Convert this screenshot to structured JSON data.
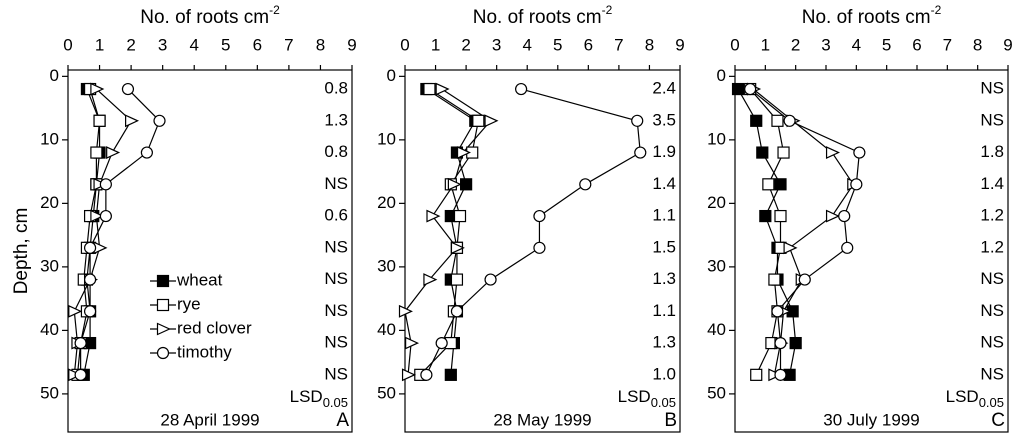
{
  "chart_data": [
    {
      "type": "line",
      "x_label": "No. of roots cm",
      "x_label_sup": "-2",
      "y_label": "Depth, cm",
      "xlim": [
        0,
        9
      ],
      "xticks": [
        0,
        1,
        2,
        3,
        4,
        5,
        6,
        7,
        8,
        9
      ],
      "ylim": [
        -1,
        56
      ],
      "yticks": [
        0,
        10,
        20,
        30,
        40,
        50
      ],
      "y_inverted": true,
      "y": [
        2,
        7,
        12,
        17,
        22,
        27,
        32,
        37,
        42,
        47
      ],
      "legend": "center-left",
      "series": [
        {
          "name": "wheat",
          "color": "#000000",
          "marker": "filled-square",
          "values": [
            0.6,
            1.0,
            1.0,
            0.9,
            0.8,
            0.7,
            0.6,
            0.7,
            0.7,
            0.5
          ]
        },
        {
          "name": "rye",
          "color": "#000000",
          "marker": "open-square",
          "values": [
            0.7,
            1.0,
            0.9,
            0.9,
            0.7,
            0.6,
            0.5,
            0.6,
            0.4,
            0.3
          ]
        },
        {
          "name": "red clover",
          "color": "#000000",
          "marker": "triangle-right",
          "values": [
            0.9,
            2.0,
            1.4,
            1.0,
            0.9,
            1.0,
            0.7,
            0.2,
            0.3,
            0.2
          ]
        },
        {
          "name": "timothy",
          "color": "#000000",
          "marker": "circle",
          "values": [
            1.9,
            2.9,
            2.5,
            1.2,
            1.2,
            0.7,
            0.7,
            0.7,
            0.4,
            0.4
          ]
        }
      ],
      "annotations": [
        "0.8",
        "1.3",
        "0.8",
        "NS",
        "0.6",
        "NS",
        "NS",
        "NS",
        "NS",
        "NS"
      ],
      "lsd_label": "LSD",
      "lsd_sub": "0.05",
      "date": "28 April 1999",
      "panel": "A"
    },
    {
      "type": "line",
      "x_label": "No. of roots cm",
      "x_label_sup": "-2",
      "xlim": [
        0,
        9
      ],
      "xticks": [
        0,
        1,
        2,
        3,
        4,
        5,
        6,
        7,
        8,
        9
      ],
      "ylim": [
        -1,
        56
      ],
      "yticks": [
        0,
        10,
        20,
        30,
        40,
        50
      ],
      "y_inverted": true,
      "y": [
        2,
        7,
        12,
        17,
        22,
        27,
        32,
        37,
        42,
        47
      ],
      "series": [
        {
          "color": "#000000",
          "marker": "filled-square",
          "values": [
            0.7,
            2.3,
            1.7,
            2.0,
            1.5,
            1.7,
            1.5,
            1.7,
            1.6,
            1.5
          ]
        },
        {
          "color": "#000000",
          "marker": "open-square",
          "values": [
            0.8,
            2.4,
            2.2,
            1.5,
            1.8,
            1.7,
            1.7,
            1.6,
            1.5,
            0.5
          ]
        },
        {
          "color": "#000000",
          "marker": "triangle-right",
          "values": [
            1.2,
            2.8,
            1.9,
            1.6,
            0.9,
            1.7,
            0.8,
            0.0,
            0.2,
            0.1
          ]
        },
        {
          "color": "#000000",
          "marker": "circle",
          "values": [
            3.8,
            7.6,
            7.7,
            5.9,
            4.4,
            4.4,
            2.8,
            1.7,
            1.2,
            0.7
          ]
        }
      ],
      "annotations": [
        "2.4",
        "3.5",
        "1.9",
        "1.4",
        "1.1",
        "1.5",
        "1.3",
        "1.1",
        "1.3",
        "1.0"
      ],
      "lsd_label": "LSD",
      "lsd_sub": "0.05",
      "date": "28 May 1999",
      "panel": "B"
    },
    {
      "type": "line",
      "x_label": "No. of roots cm",
      "x_label_sup": "-2",
      "xlim": [
        0,
        9
      ],
      "xticks": [
        0,
        1,
        2,
        3,
        4,
        5,
        6,
        7,
        8,
        9
      ],
      "ylim": [
        -1,
        56
      ],
      "yticks": [
        0,
        10,
        20,
        30,
        40,
        50
      ],
      "y_inverted": true,
      "y": [
        2,
        7,
        12,
        17,
        22,
        27,
        32,
        37,
        42,
        47
      ],
      "series": [
        {
          "color": "#000000",
          "marker": "filled-square",
          "values": [
            0.1,
            0.7,
            0.9,
            1.5,
            1.0,
            1.4,
            1.4,
            1.9,
            2.0,
            1.8
          ]
        },
        {
          "color": "#000000",
          "marker": "open-square",
          "values": [
            0.5,
            1.4,
            1.6,
            1.1,
            1.5,
            1.5,
            1.3,
            1.4,
            1.2,
            0.7
          ]
        },
        {
          "color": "#000000",
          "marker": "triangle-right",
          "values": [
            0.6,
            1.9,
            3.2,
            3.9,
            3.2,
            1.8,
            2.2,
            1.6,
            1.5,
            1.3
          ]
        },
        {
          "color": "#000000",
          "marker": "circle",
          "values": [
            0.5,
            1.8,
            4.1,
            4.0,
            3.6,
            3.7,
            2.3,
            1.4,
            1.5,
            1.5
          ]
        }
      ],
      "annotations": [
        "NS",
        "NS",
        "1.8",
        "1.4",
        "1.2",
        "1.2",
        "NS",
        "NS",
        "NS",
        "NS"
      ],
      "lsd_label": "LSD",
      "lsd_sub": "0.05",
      "date": "30 July 1999",
      "panel": "C"
    }
  ]
}
